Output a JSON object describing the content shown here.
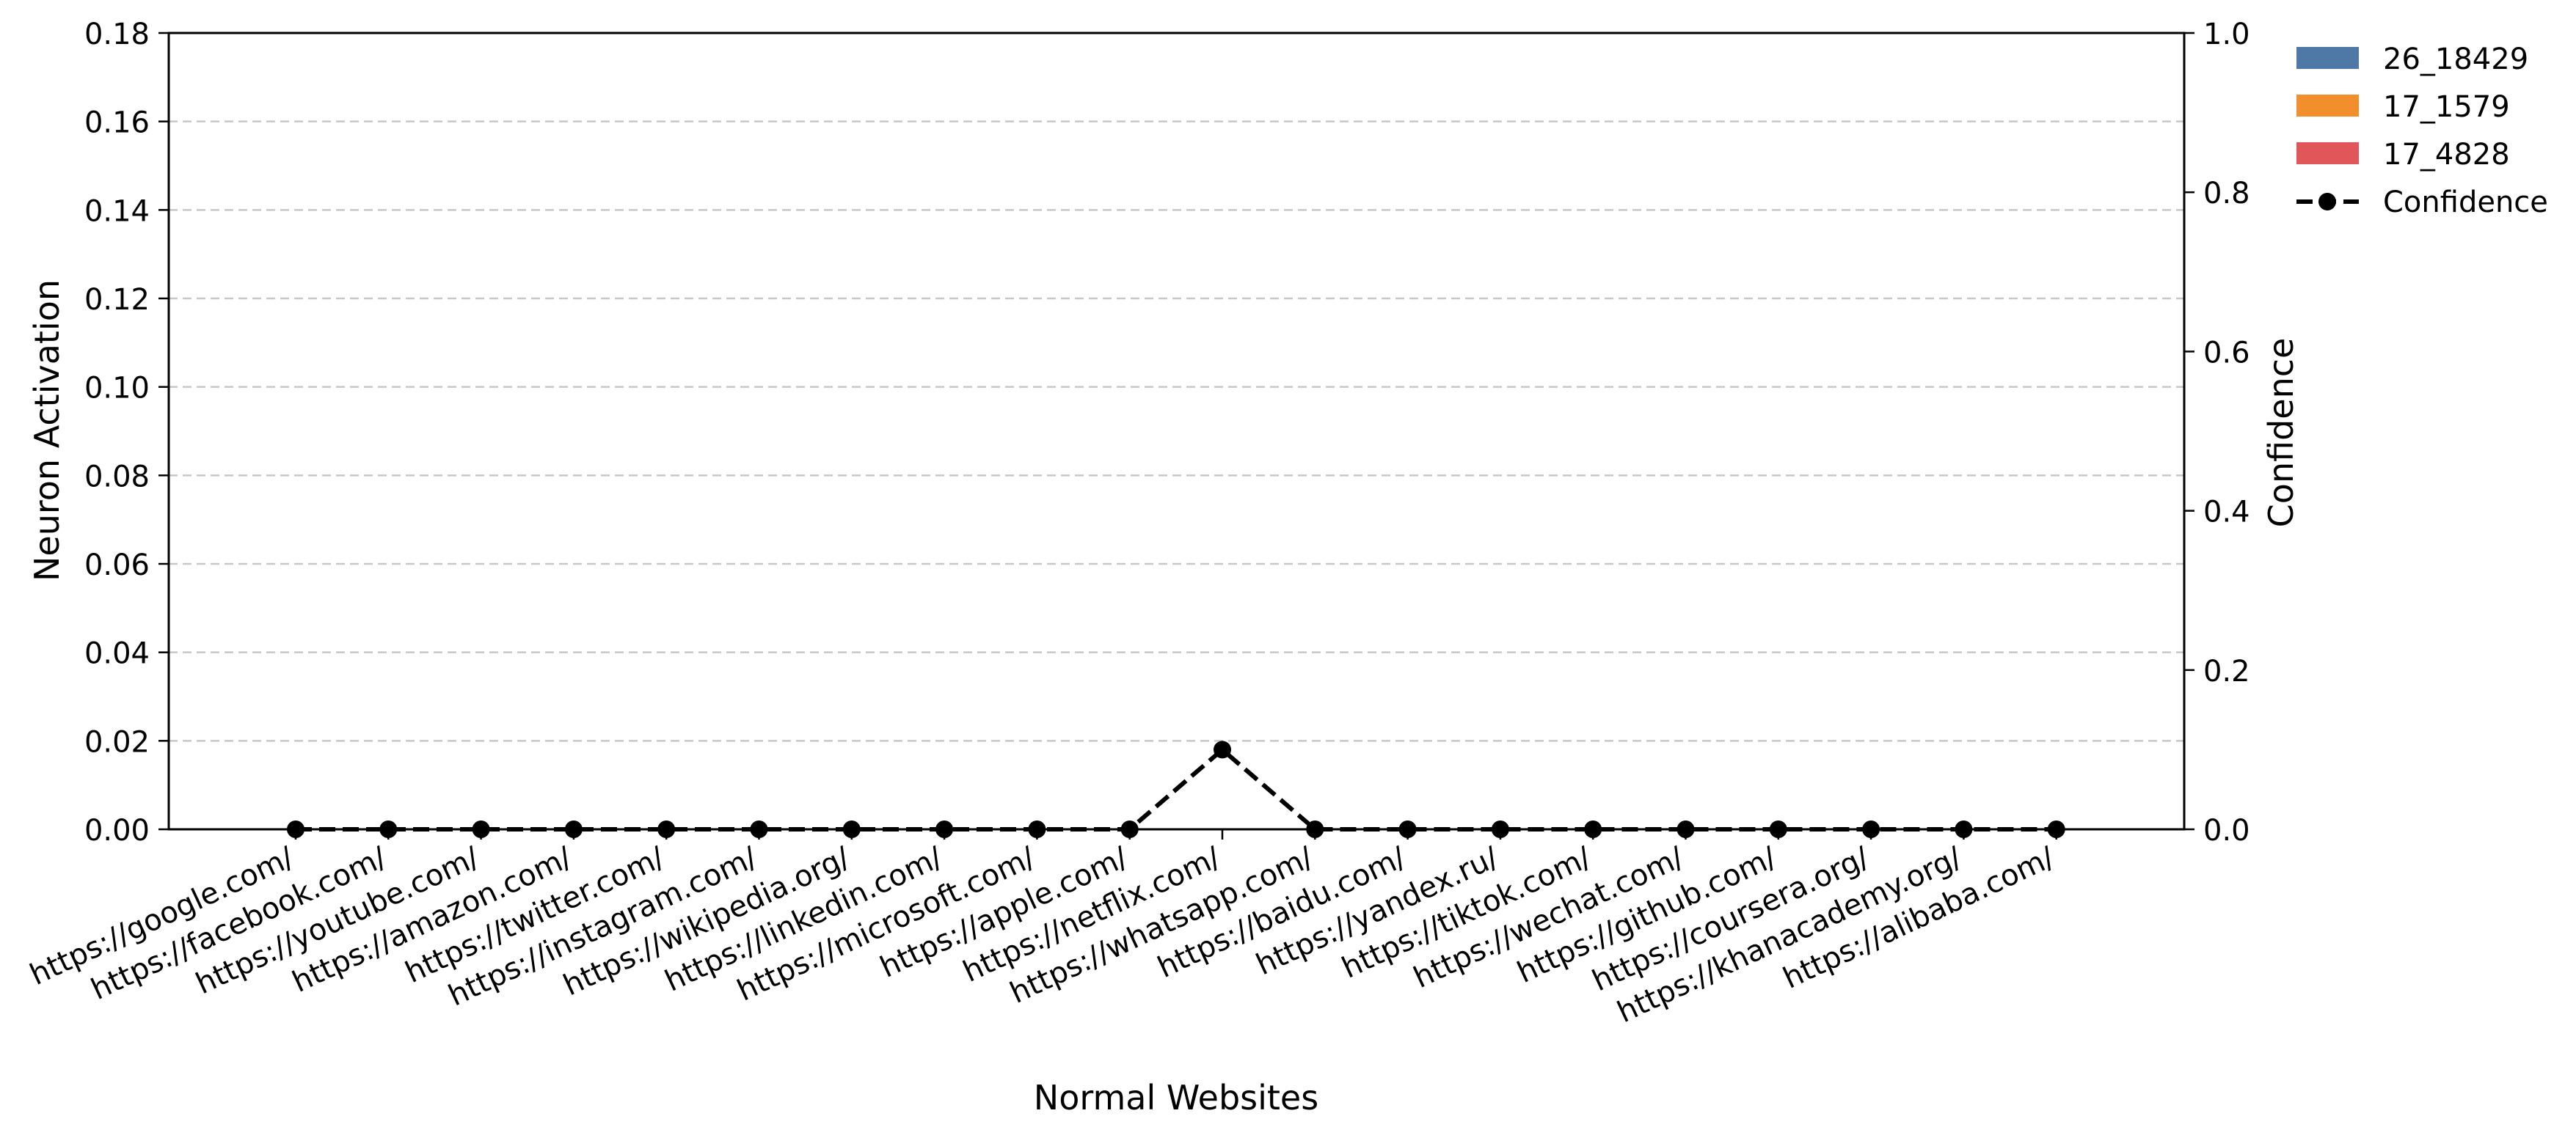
{
  "chart_data": {
    "type": "bar",
    "categories": [
      "https://google.com/",
      "https://facebook.com/",
      "https://youtube.com/",
      "https://amazon.com/",
      "https://twitter.com/",
      "https://instagram.com/",
      "https://wikipedia.org/",
      "https://linkedin.com/",
      "https://microsoft.com/",
      "https://apple.com/",
      "https://netflix.com/",
      "https://whatsapp.com/",
      "https://baidu.com/",
      "https://yandex.ru/",
      "https://tiktok.com/",
      "https://wechat.com/",
      "https://github.com/",
      "https://coursera.org/",
      "https://khanacademy.org/",
      "https://alibaba.com/"
    ],
    "series": [
      {
        "name": "26_18429",
        "type": "bar",
        "axis": "left",
        "color": "#4e79a7",
        "values": [
          0,
          0,
          0,
          0,
          0,
          0,
          0,
          0,
          0,
          0,
          0,
          0,
          0,
          0,
          0,
          0,
          0,
          0,
          0,
          0
        ]
      },
      {
        "name": "17_1579",
        "type": "bar",
        "axis": "left",
        "color": "#f28e2b",
        "values": [
          0,
          0,
          0,
          0,
          0,
          0,
          0,
          0,
          0,
          0,
          0,
          0,
          0,
          0,
          0,
          0,
          0,
          0,
          0,
          0
        ]
      },
      {
        "name": "17_4828",
        "type": "bar",
        "axis": "left",
        "color": "#e15759",
        "values": [
          0,
          0,
          0,
          0,
          0,
          0,
          0,
          0,
          0,
          0,
          0,
          0,
          0,
          0,
          0,
          0,
          0,
          0,
          0,
          0
        ]
      },
      {
        "name": "Confidence",
        "type": "line",
        "axis": "right",
        "color": "#000000",
        "line_style": "dashed",
        "marker": "circle",
        "values": [
          0,
          0,
          0,
          0,
          0,
          0,
          0,
          0,
          0,
          0,
          0.1,
          0,
          0,
          0,
          0,
          0,
          0,
          0,
          0,
          0
        ]
      }
    ],
    "xlabel": "Normal Websites",
    "ylabel": "Neuron Activation",
    "ylabel_right": "Confidence",
    "ylim": [
      0,
      0.18
    ],
    "ylim_right": [
      0,
      1.0
    ],
    "yticks": [
      "0.00",
      "0.02",
      "0.04",
      "0.06",
      "0.08",
      "0.10",
      "0.12",
      "0.14",
      "0.16",
      "0.18"
    ],
    "yticks_right": [
      "0.0",
      "0.2",
      "0.4",
      "0.6",
      "0.8",
      "1.0"
    ],
    "grid": "horizontal dashed",
    "legend_position": "outside top-right"
  }
}
